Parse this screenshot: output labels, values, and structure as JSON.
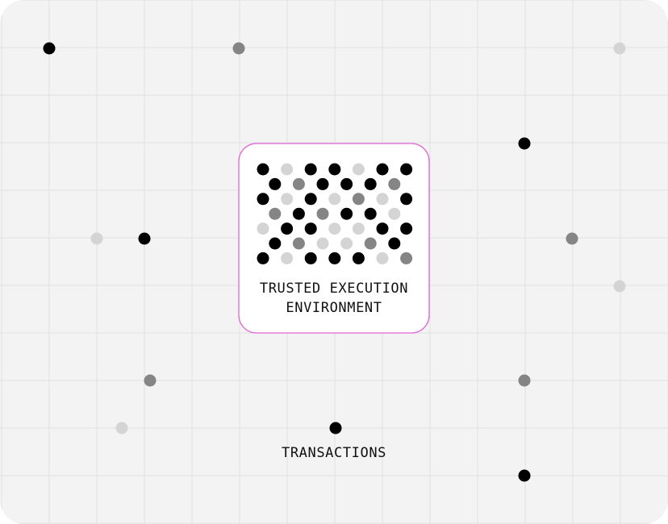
{
  "colors": {
    "panel_background": "#f3f3f3",
    "grid_line": "#e1e1e1",
    "tee_border": "#e463d8",
    "tee_background": "#ffffff",
    "dot_black": "#000000",
    "dot_gray": "#858585",
    "dot_light": "#d4d4d4"
  },
  "tee": {
    "title_line1": "TRUSTED EXECUTION",
    "title_line2": "ENVIRONMENT",
    "dot_pattern": [
      [
        "black",
        "light",
        "black",
        "black",
        "light",
        "black",
        "black"
      ],
      [
        "black",
        "gray",
        "black",
        "black",
        "black",
        "gray"
      ],
      [
        "black",
        "light",
        "black",
        "light",
        "gray",
        "light",
        "black"
      ],
      [
        "gray",
        "black",
        "gray",
        "black",
        "black",
        "light"
      ],
      [
        "light",
        "black",
        "black",
        "light",
        "light",
        "black",
        "black"
      ],
      [
        "black",
        "gray",
        "light",
        "light",
        "gray",
        "black"
      ],
      [
        "black",
        "light",
        "black",
        "black",
        "black",
        "light",
        "gray"
      ]
    ]
  },
  "transactions": {
    "label": "TRANSACTIONS"
  }
}
